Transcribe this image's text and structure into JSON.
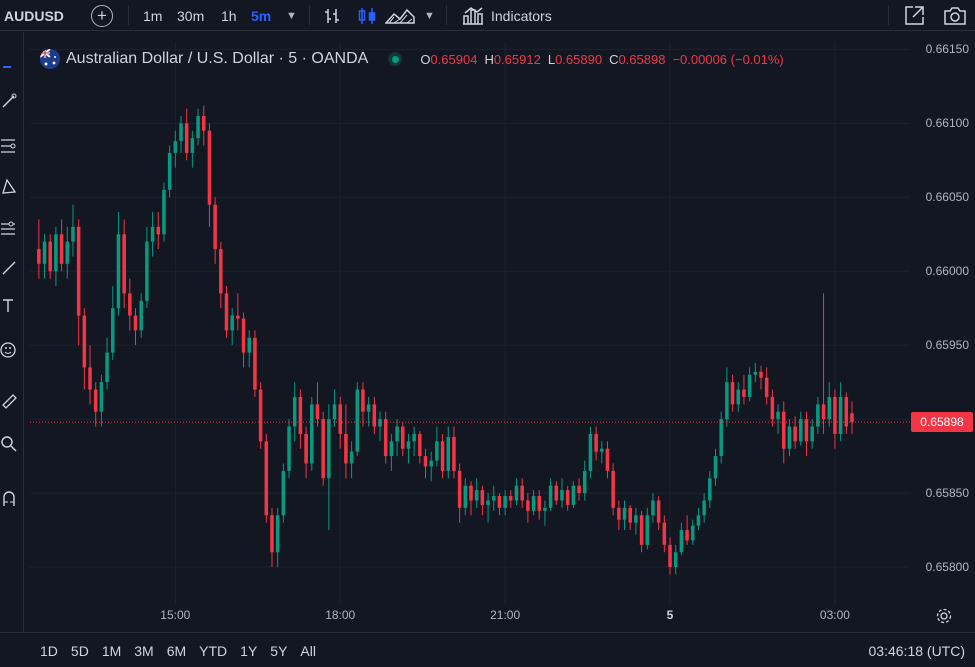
{
  "toolbar": {
    "symbol": "AUDUSD",
    "timeframes": [
      "1m",
      "30m",
      "1h",
      "5m"
    ],
    "active_timeframe": "5m",
    "indicators_label": "Indicators"
  },
  "legend": {
    "title": "Australian Dollar / U.S. Dollar · 5 · OANDA",
    "o_label": "O",
    "o_value": "0.65904",
    "h_label": "H",
    "h_value": "0.65912",
    "l_label": "L",
    "l_value": "0.65890",
    "c_label": "C",
    "c_value": "0.65898",
    "change": "−0.00006 (−0.01%)",
    "colors": {
      "up": "#089981",
      "down": "#f23645"
    }
  },
  "price_axis": {
    "ticks": [
      "0.66150",
      "0.66100",
      "0.66050",
      "0.66000",
      "0.65950",
      "0.65900",
      "0.65850",
      "0.65800"
    ],
    "last_price": "0.65898"
  },
  "time_axis": {
    "ticks": [
      "15:00",
      "18:00",
      "21:00",
      "5",
      "03:00"
    ]
  },
  "bottom": {
    "ranges": [
      "1D",
      "5D",
      "1M",
      "3M",
      "6M",
      "YTD",
      "1Y",
      "5Y",
      "All"
    ],
    "clock": "03:46:18 (UTC)"
  },
  "chart_data": {
    "type": "candlestick",
    "ylim": [
      0.65775,
      0.66155
    ],
    "xlim": [
      0,
      153
    ],
    "x_ticks": [
      {
        "label": "15:00",
        "bar": 24
      },
      {
        "label": "18:00",
        "bar": 53
      },
      {
        "label": "21:00",
        "bar": 82
      },
      {
        "label": "5",
        "bar": 111
      },
      {
        "label": "03:00",
        "bar": 140
      }
    ],
    "last_price": 0.65898,
    "candles": [
      [
        0.66015,
        0.66035,
        0.65995,
        0.66005
      ],
      [
        0.66005,
        0.66025,
        0.65995,
        0.6602
      ],
      [
        0.6602,
        0.66025,
        0.65995,
        0.66
      ],
      [
        0.66,
        0.6603,
        0.6599,
        0.66025
      ],
      [
        0.66025,
        0.66035,
        0.66,
        0.66005
      ],
      [
        0.66005,
        0.6603,
        0.65995,
        0.6602
      ],
      [
        0.6602,
        0.66045,
        0.6601,
        0.6603
      ],
      [
        0.6603,
        0.66035,
        0.6595,
        0.6597
      ],
      [
        0.6597,
        0.65975,
        0.6592,
        0.65935
      ],
      [
        0.65935,
        0.6595,
        0.6591,
        0.6592
      ],
      [
        0.6592,
        0.65925,
        0.65895,
        0.65905
      ],
      [
        0.65905,
        0.6593,
        0.65895,
        0.65925
      ],
      [
        0.65925,
        0.65955,
        0.6592,
        0.65945
      ],
      [
        0.65945,
        0.6599,
        0.6594,
        0.65975
      ],
      [
        0.65975,
        0.6604,
        0.6597,
        0.66025
      ],
      [
        0.66025,
        0.66035,
        0.65975,
        0.65985
      ],
      [
        0.65985,
        0.65995,
        0.6596,
        0.6597
      ],
      [
        0.6597,
        0.65975,
        0.6595,
        0.6596
      ],
      [
        0.6596,
        0.65985,
        0.65955,
        0.6598
      ],
      [
        0.6598,
        0.6603,
        0.65975,
        0.6602
      ],
      [
        0.6602,
        0.6604,
        0.6601,
        0.6603
      ],
      [
        0.6603,
        0.6604,
        0.66015,
        0.66025
      ],
      [
        0.66025,
        0.6606,
        0.6602,
        0.66055
      ],
      [
        0.66055,
        0.66085,
        0.6605,
        0.6608
      ],
      [
        0.6608,
        0.66095,
        0.6607,
        0.66088
      ],
      [
        0.66088,
        0.66105,
        0.6608,
        0.661
      ],
      [
        0.661,
        0.6611,
        0.66075,
        0.6608
      ],
      [
        0.6608,
        0.66095,
        0.6607,
        0.6609
      ],
      [
        0.6609,
        0.6611,
        0.66085,
        0.66105
      ],
      [
        0.66105,
        0.66112,
        0.66085,
        0.66095
      ],
      [
        0.66095,
        0.661,
        0.6603,
        0.66045
      ],
      [
        0.66045,
        0.6605,
        0.66005,
        0.66015
      ],
      [
        0.66015,
        0.6602,
        0.65975,
        0.65985
      ],
      [
        0.65985,
        0.6599,
        0.65955,
        0.6596
      ],
      [
        0.6596,
        0.65975,
        0.6595,
        0.6597
      ],
      [
        0.6597,
        0.65985,
        0.6596,
        0.65968
      ],
      [
        0.65968,
        0.65972,
        0.65935,
        0.65945
      ],
      [
        0.65945,
        0.6596,
        0.65935,
        0.65955
      ],
      [
        0.65955,
        0.6596,
        0.65915,
        0.6592
      ],
      [
        0.6592,
        0.65925,
        0.6588,
        0.65885
      ],
      [
        0.65885,
        0.6589,
        0.6583,
        0.65835
      ],
      [
        0.65835,
        0.6584,
        0.658,
        0.6581
      ],
      [
        0.6581,
        0.6584,
        0.658,
        0.65835
      ],
      [
        0.65835,
        0.6587,
        0.6583,
        0.65865
      ],
      [
        0.65865,
        0.659,
        0.6586,
        0.65895
      ],
      [
        0.65895,
        0.65925,
        0.65885,
        0.65915
      ],
      [
        0.65915,
        0.6592,
        0.6588,
        0.6589
      ],
      [
        0.6589,
        0.65895,
        0.6586,
        0.6587
      ],
      [
        0.6587,
        0.65915,
        0.65865,
        0.6591
      ],
      [
        0.6591,
        0.65925,
        0.65895,
        0.659
      ],
      [
        0.659,
        0.65905,
        0.65855,
        0.6586
      ],
      [
        0.6586,
        0.6591,
        0.65825,
        0.659
      ],
      [
        0.659,
        0.6592,
        0.65895,
        0.6591
      ],
      [
        0.6591,
        0.65915,
        0.6588,
        0.6589
      ],
      [
        0.6589,
        0.6591,
        0.6586,
        0.6587
      ],
      [
        0.6587,
        0.65885,
        0.6586,
        0.65878
      ],
      [
        0.65878,
        0.65925,
        0.65875,
        0.6592
      ],
      [
        0.6592,
        0.65925,
        0.65895,
        0.65905
      ],
      [
        0.65905,
        0.65915,
        0.65895,
        0.6591
      ],
      [
        0.6591,
        0.65915,
        0.6589,
        0.65895
      ],
      [
        0.65895,
        0.65905,
        0.65885,
        0.659
      ],
      [
        0.659,
        0.65905,
        0.6587,
        0.65875
      ],
      [
        0.65875,
        0.6589,
        0.65865,
        0.65885
      ],
      [
        0.65885,
        0.659,
        0.65875,
        0.65895
      ],
      [
        0.65895,
        0.65898,
        0.65875,
        0.6588
      ],
      [
        0.6588,
        0.6589,
        0.6587,
        0.65885
      ],
      [
        0.65885,
        0.65895,
        0.65875,
        0.6589
      ],
      [
        0.6589,
        0.65892,
        0.6587,
        0.65875
      ],
      [
        0.65875,
        0.6588,
        0.6586,
        0.65868
      ],
      [
        0.65868,
        0.65878,
        0.65858,
        0.65872
      ],
      [
        0.65872,
        0.65895,
        0.65868,
        0.65885
      ],
      [
        0.65885,
        0.6589,
        0.6586,
        0.65865
      ],
      [
        0.65865,
        0.65895,
        0.6586,
        0.65888
      ],
      [
        0.65888,
        0.65895,
        0.6586,
        0.65865
      ],
      [
        0.65865,
        0.6587,
        0.6583,
        0.6584
      ],
      [
        0.6584,
        0.6586,
        0.65835,
        0.65855
      ],
      [
        0.65855,
        0.65858,
        0.65835,
        0.65845
      ],
      [
        0.65845,
        0.6586,
        0.6584,
        0.65852
      ],
      [
        0.65852,
        0.65855,
        0.65835,
        0.65842
      ],
      [
        0.65842,
        0.6585,
        0.6583,
        0.65845
      ],
      [
        0.65845,
        0.65855,
        0.65838,
        0.65848
      ],
      [
        0.65848,
        0.6585,
        0.65835,
        0.6584
      ],
      [
        0.6584,
        0.65852,
        0.65835,
        0.65848
      ],
      [
        0.65848,
        0.65852,
        0.6584,
        0.65845
      ],
      [
        0.65845,
        0.6586,
        0.65842,
        0.65855
      ],
      [
        0.65855,
        0.6586,
        0.6584,
        0.65845
      ],
      [
        0.65845,
        0.6585,
        0.6583,
        0.65838
      ],
      [
        0.65838,
        0.65852,
        0.65835,
        0.65848
      ],
      [
        0.65848,
        0.65852,
        0.65832,
        0.65838
      ],
      [
        0.65838,
        0.65845,
        0.65828,
        0.6584
      ],
      [
        0.6584,
        0.6586,
        0.65838,
        0.65855
      ],
      [
        0.65855,
        0.65858,
        0.65842,
        0.65845
      ],
      [
        0.65845,
        0.6586,
        0.6584,
        0.65852
      ],
      [
        0.65852,
        0.65855,
        0.65838,
        0.65842
      ],
      [
        0.65842,
        0.65858,
        0.6584,
        0.65855
      ],
      [
        0.65855,
        0.6586,
        0.65845,
        0.6585
      ],
      [
        0.6585,
        0.65872,
        0.65845,
        0.65865
      ],
      [
        0.65865,
        0.65895,
        0.6586,
        0.6589
      ],
      [
        0.6589,
        0.65895,
        0.65872,
        0.65878
      ],
      [
        0.65878,
        0.65885,
        0.6587,
        0.6588
      ],
      [
        0.6588,
        0.65885,
        0.6586,
        0.65865
      ],
      [
        0.65865,
        0.6587,
        0.65835,
        0.6584
      ],
      [
        0.6584,
        0.65845,
        0.65825,
        0.65832
      ],
      [
        0.65832,
        0.65845,
        0.65825,
        0.6584
      ],
      [
        0.6584,
        0.65842,
        0.65825,
        0.6583
      ],
      [
        0.6583,
        0.6584,
        0.65822,
        0.65835
      ],
      [
        0.65835,
        0.65838,
        0.6581,
        0.65815
      ],
      [
        0.65815,
        0.6584,
        0.65812,
        0.65835
      ],
      [
        0.65835,
        0.6585,
        0.6583,
        0.65845
      ],
      [
        0.65845,
        0.65848,
        0.65825,
        0.6583
      ],
      [
        0.6583,
        0.65835,
        0.6581,
        0.65815
      ],
      [
        0.65815,
        0.6582,
        0.65795,
        0.658
      ],
      [
        0.658,
        0.65815,
        0.65795,
        0.6581
      ],
      [
        0.6581,
        0.6583,
        0.65808,
        0.65825
      ],
      [
        0.65825,
        0.65835,
        0.65815,
        0.65818
      ],
      [
        0.65818,
        0.65832,
        0.65815,
        0.65828
      ],
      [
        0.65828,
        0.6584,
        0.65825,
        0.65835
      ],
      [
        0.65835,
        0.6585,
        0.6583,
        0.65845
      ],
      [
        0.65845,
        0.65865,
        0.6584,
        0.6586
      ],
      [
        0.6586,
        0.6588,
        0.65855,
        0.65875
      ],
      [
        0.65875,
        0.65905,
        0.6587,
        0.659
      ],
      [
        0.659,
        0.65935,
        0.65895,
        0.65925
      ],
      [
        0.65925,
        0.6593,
        0.65905,
        0.6591
      ],
      [
        0.6591,
        0.65925,
        0.65905,
        0.6592
      ],
      [
        0.6592,
        0.6593,
        0.6591,
        0.65915
      ],
      [
        0.65915,
        0.65935,
        0.65912,
        0.6593
      ],
      [
        0.6593,
        0.65938,
        0.65925,
        0.65932
      ],
      [
        0.65932,
        0.65936,
        0.6592,
        0.65928
      ],
      [
        0.65928,
        0.65935,
        0.6591,
        0.65915
      ],
      [
        0.65915,
        0.6592,
        0.65895,
        0.659
      ],
      [
        0.659,
        0.6591,
        0.6589,
        0.65905
      ],
      [
        0.65905,
        0.65912,
        0.6587,
        0.6588
      ],
      [
        0.6588,
        0.659,
        0.65875,
        0.65895
      ],
      [
        0.65895,
        0.65902,
        0.6588,
        0.65885
      ],
      [
        0.65885,
        0.65905,
        0.65882,
        0.659
      ],
      [
        0.659,
        0.65905,
        0.65875,
        0.65885
      ],
      [
        0.65885,
        0.659,
        0.6588,
        0.65895
      ],
      [
        0.65895,
        0.65915,
        0.6589,
        0.6591
      ],
      [
        0.6591,
        0.65985,
        0.6589,
        0.659
      ],
      [
        0.659,
        0.65925,
        0.65895,
        0.65915
      ],
      [
        0.65915,
        0.6592,
        0.6588,
        0.6589
      ],
      [
        0.6589,
        0.65925,
        0.65885,
        0.65915
      ],
      [
        0.65915,
        0.65918,
        0.6589,
        0.65895
      ],
      [
        0.65904,
        0.65912,
        0.6589,
        0.65898
      ]
    ]
  }
}
